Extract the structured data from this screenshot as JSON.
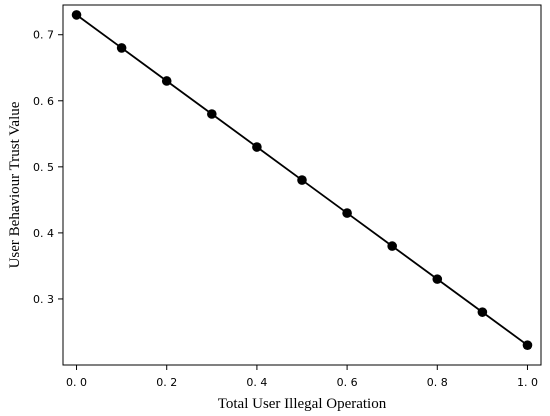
{
  "chart_data": {
    "type": "line",
    "xlabel": "Total User Illegal Operation",
    "ylabel": "User Behaviour Trust Value",
    "xlim": [
      -0.03,
      1.03
    ],
    "ylim": [
      0.2,
      0.745
    ],
    "grid": false,
    "x_ticks": [
      0.0,
      0.2,
      0.4,
      0.6,
      0.8,
      1.0
    ],
    "x_tick_labels": [
      "0. 0",
      "0. 2",
      "0. 4",
      "0. 6",
      "0. 8",
      "1. 0"
    ],
    "y_ticks": [
      0.3,
      0.4,
      0.5,
      0.6,
      0.7
    ],
    "y_tick_labels": [
      "0. 3",
      "0. 4",
      "0. 5",
      "0. 6",
      "0. 7"
    ],
    "series": [
      {
        "x": [
          0.0,
          0.1,
          0.2,
          0.3,
          0.4,
          0.5,
          0.6,
          0.7,
          0.8,
          0.9,
          1.0
        ],
        "values": [
          0.73,
          0.68,
          0.63,
          0.58,
          0.53,
          0.48,
          0.43,
          0.38,
          0.33,
          0.28,
          0.23
        ],
        "color": "#000000",
        "marker": "circle"
      }
    ]
  }
}
